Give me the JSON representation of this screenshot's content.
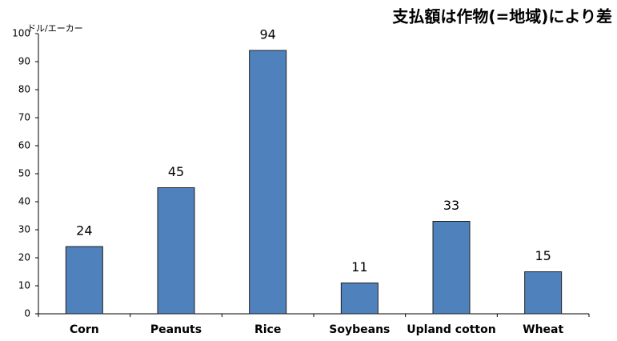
{
  "chart_data": {
    "type": "bar",
    "title": "支払額は作物(=地域)により差",
    "y_label": "ドル/エーカー",
    "categories": [
      "Corn",
      "Peanuts",
      "Rice",
      "Soybeans",
      "Upland cotton",
      "Wheat"
    ],
    "values": [
      24,
      45,
      94,
      11,
      33,
      15
    ],
    "color": "#4f81bd",
    "ylim": [
      0,
      100
    ],
    "yticks": [
      0,
      10,
      20,
      30,
      40,
      50,
      60,
      70,
      80,
      90,
      100
    ],
    "grid": false
  }
}
